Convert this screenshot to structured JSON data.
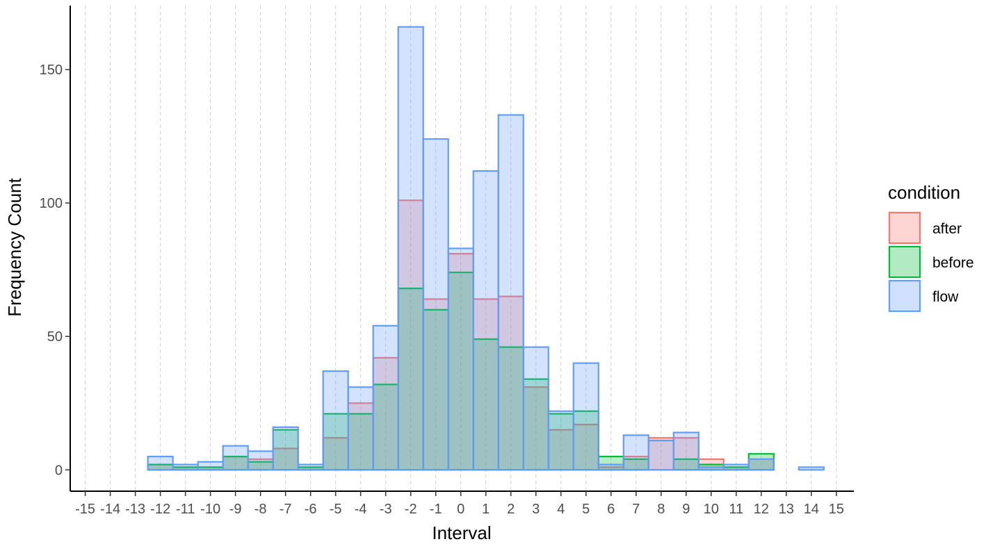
{
  "chart_data": {
    "type": "bar",
    "mode": "overlaid-histogram",
    "title": "",
    "xlabel": "Interval",
    "ylabel": "Frequency Count",
    "x_ticks": [
      -15,
      -14,
      -13,
      -12,
      -11,
      -10,
      -9,
      -8,
      -7,
      -6,
      -5,
      -4,
      -3,
      -2,
      -1,
      0,
      1,
      2,
      3,
      4,
      5,
      6,
      7,
      8,
      9,
      10,
      11,
      12,
      13,
      14,
      15
    ],
    "y_ticks": [
      0,
      50,
      100,
      150
    ],
    "xlim": [
      -15.6,
      15.7
    ],
    "ylim": [
      -8,
      174
    ],
    "grid": "vertical dashed at x ticks",
    "legend": {
      "title": "condition",
      "position": "right"
    },
    "categories": [
      -14,
      -13,
      -12,
      -11,
      -10,
      -9,
      -8,
      -7,
      -6,
      -5,
      -4,
      -3,
      -2,
      -1,
      0,
      1,
      2,
      3,
      4,
      5,
      6,
      7,
      8,
      9,
      10,
      11,
      12,
      13,
      14
    ],
    "series": [
      {
        "name": "after",
        "stroke": "#F8766D",
        "fill": "#F8766D",
        "values": [
          0,
          0,
          2,
          1,
          1,
          5,
          4,
          8,
          1,
          12,
          25,
          42,
          101,
          64,
          81,
          64,
          65,
          31,
          15,
          17,
          1,
          5,
          12,
          12,
          4,
          1,
          4,
          0,
          0
        ]
      },
      {
        "name": "before",
        "stroke": "#00BA38",
        "fill": "#00BA38",
        "values": [
          0,
          0,
          2,
          1,
          1,
          5,
          3,
          15,
          1,
          21,
          21,
          32,
          68,
          60,
          74,
          49,
          46,
          34,
          21,
          22,
          5,
          4,
          0,
          4,
          2,
          1,
          6,
          0,
          0
        ]
      },
      {
        "name": "flow",
        "stroke": "#619CFF",
        "fill": "#619CFF",
        "values": [
          0,
          0,
          5,
          2,
          3,
          9,
          7,
          16,
          2,
          37,
          31,
          54,
          166,
          124,
          83,
          112,
          133,
          46,
          22,
          40,
          2,
          13,
          11,
          14,
          1,
          2,
          4,
          0,
          1
        ]
      }
    ]
  }
}
